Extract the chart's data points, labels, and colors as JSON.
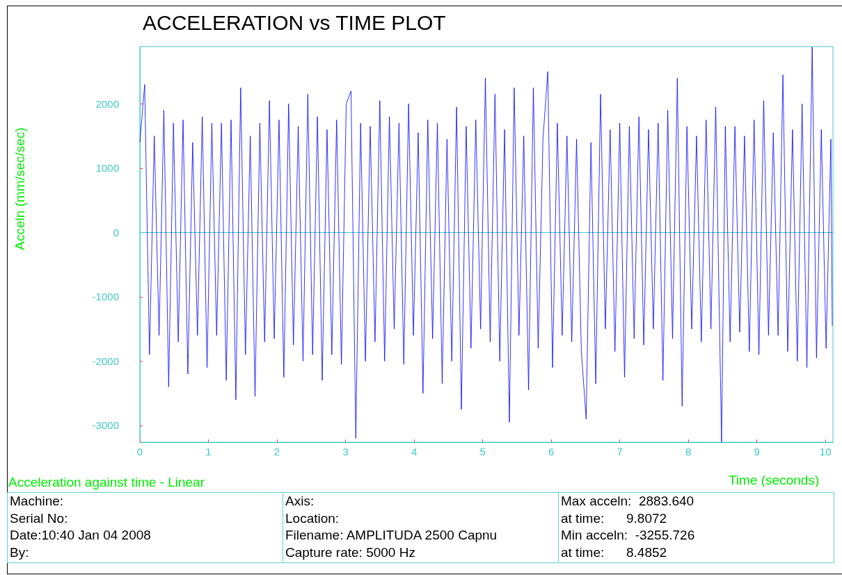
{
  "chart_data": {
    "type": "line",
    "title": "ACCELERATION vs TIME PLOT",
    "xlabel": "Time (seconds)",
    "ylabel": "Acceln (mm/sec/sec)",
    "annotations": [
      "Acceleration against time - Linear",
      "Machine:",
      "Serial No:",
      "Date:10:40 Jan 04 2008",
      "By:",
      "Axis:",
      "Location:",
      "Filename: AMPLITUDA 2500 Capnu",
      "Capture rate: 5000 Hz",
      "Max acceln:  2883.640",
      "at time:      9.8072",
      "Min acceln:  -3255.726",
      "at time:      8.4852"
    ],
    "x": [
      0,
      0.07,
      0.14,
      0.21,
      0.28,
      0.35,
      0.42,
      0.49,
      0.56,
      0.63,
      0.7,
      0.77,
      0.84,
      0.91,
      0.98,
      1.05,
      1.12,
      1.19,
      1.26,
      1.33,
      1.4,
      1.47,
      1.54,
      1.61,
      1.68,
      1.75,
      1.82,
      1.89,
      1.96,
      2.03,
      2.1,
      2.17,
      2.24,
      2.31,
      2.38,
      2.45,
      2.52,
      2.59,
      2.66,
      2.73,
      2.8,
      2.87,
      2.94,
      3.01,
      3.08,
      3.15,
      3.22,
      3.29,
      3.36,
      3.43,
      3.5,
      3.57,
      3.64,
      3.71,
      3.78,
      3.85,
      3.92,
      3.99,
      4.06,
      4.13,
      4.2,
      4.27,
      4.34,
      4.41,
      4.48,
      4.55,
      4.62,
      4.69,
      4.76,
      4.83,
      4.9,
      4.97,
      5.04,
      5.11,
      5.18,
      5.25,
      5.32,
      5.39,
      5.46,
      5.53,
      5.6,
      5.67,
      5.74,
      5.81,
      5.88,
      5.95,
      6.02,
      6.09,
      6.16,
      6.23,
      6.3,
      6.37,
      6.44,
      6.51,
      6.58,
      6.65,
      6.72,
      6.79,
      6.86,
      6.93,
      7,
      7.07,
      7.14,
      7.21,
      7.28,
      7.35,
      7.42,
      7.49,
      7.56,
      7.63,
      7.7,
      7.77,
      7.84,
      7.91,
      7.98,
      8.05,
      8.12,
      8.19,
      8.26,
      8.33,
      8.4,
      8.4852,
      8.54,
      8.61,
      8.68,
      8.75,
      8.82,
      8.89,
      8.96,
      9.03,
      9.1,
      9.17,
      9.24,
      9.31,
      9.38,
      9.45,
      9.52,
      9.59,
      9.66,
      9.73,
      9.8072,
      9.87,
      9.94,
      10.01,
      10.08,
      10.1
    ],
    "series": [
      {
        "color": "#0000ff",
        "values": [
          1400,
          2300,
          -1900,
          1500,
          -1600,
          1900,
          -2400,
          1700,
          -1700,
          1750,
          -2200,
          1400,
          -1600,
          1800,
          -2100,
          1700,
          -1600,
          1700,
          -2300,
          1750,
          -2600,
          2250,
          -1900,
          1500,
          -2550,
          1700,
          -1700,
          2050,
          -1650,
          1750,
          -2250,
          2000,
          -1750,
          1650,
          -2000,
          2150,
          -1900,
          1800,
          -2300,
          1600,
          -1900,
          1750,
          -2050,
          2000,
          2200,
          -3200,
          1700,
          -2000,
          1650,
          -1700,
          2050,
          -2000,
          1800,
          -1500,
          1700,
          -2050,
          2000,
          -1600,
          1550,
          -2500,
          1750,
          -1650,
          1700,
          -2350,
          1450,
          -2000,
          1950,
          -2750,
          1650,
          -1800,
          1750,
          -1500,
          2400,
          -1700,
          2150,
          -2000,
          1600,
          -2950,
          2250,
          -1600,
          1500,
          -2450,
          2250,
          -1800,
          1450,
          2500,
          -2100,
          1700,
          -1600,
          1500,
          -1700,
          1450,
          -1850,
          -2900,
          1400,
          -2350,
          2150,
          -1500,
          1600,
          -1850,
          1700,
          -2250,
          1650,
          -1650,
          1800,
          -1750,
          1600,
          -1500,
          1700,
          -2300,
          1900,
          -1650,
          2400,
          -2700,
          1650,
          -1500,
          1500,
          -1700,
          1750,
          -1500,
          1950,
          -3255.726,
          1650,
          -1700,
          1650,
          -1550,
          1500,
          -1850,
          1750,
          -1900,
          2050,
          -1600,
          1550,
          -1600,
          2450,
          -1850,
          1600,
          -2000,
          2000,
          -2100,
          2883.64,
          -1950,
          1600,
          -1800,
          1450,
          -1450
        ]
      }
    ],
    "xlim": [
      0,
      10.11
    ],
    "xticks": [
      0,
      1,
      2,
      3,
      4,
      5,
      6,
      7,
      8,
      9,
      10
    ],
    "ylim": [
      -3260,
      2890
    ],
    "yticks": [
      -3000,
      -2000,
      -1000,
      0,
      1000,
      2000
    ],
    "ref_lines": [
      {
        "axis": "y",
        "value": 0,
        "color": "#40c8c8"
      }
    ],
    "grid": false,
    "marker": "none",
    "line_style": "solid"
  }
}
